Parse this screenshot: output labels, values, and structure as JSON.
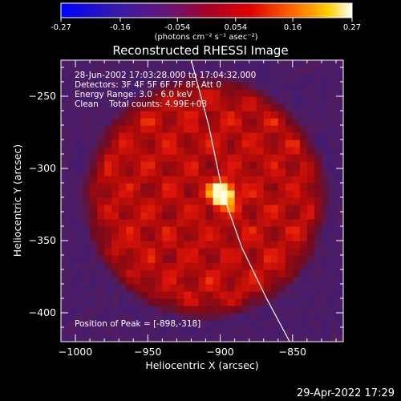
{
  "chart_data": {
    "type": "heatmap",
    "title": "Reconstructed RHESSI Image",
    "xlabel": "Heliocentric X (arcsec)",
    "ylabel": "Heliocentric Y (arcsec)",
    "xlim": [
      -1010,
      -815
    ],
    "ylim": [
      -420,
      -225
    ],
    "x_ticks": [
      -1000,
      -950,
      -900,
      -850
    ],
    "y_ticks": [
      -400,
      -350,
      -300,
      -250
    ],
    "colorbar": {
      "ticks": [
        "-0.27",
        "-0.16",
        "-0.054",
        "0.054",
        "0.16",
        "0.27"
      ],
      "range": [
        -0.27,
        0.27
      ],
      "unit_label": "(photons cm⁻² s⁻¹ asec⁻²)"
    },
    "annotations": [
      "28-Jun-2002 17:03:28.000 to 17:04:32.000",
      "Detectors: 3F 4F 5F 6F 7F 8F, Att 0",
      "Energy Range: 3.0 - 6.0 keV",
      "Clean    Total counts: 4.99E+03"
    ],
    "peak_label": "Position of Peak = [-898,-318]",
    "peak": {
      "x": -898,
      "y": -318,
      "value": 0.27
    },
    "solar_limb": [
      [
        -920,
        -225
      ],
      [
        -908,
        -270
      ],
      [
        -898,
        -318
      ],
      [
        -885,
        -355
      ],
      [
        -868,
        -390
      ],
      [
        -852,
        -420
      ]
    ],
    "source_region": {
      "center_x": -910,
      "center_y": -320,
      "radius": 85
    }
  },
  "footer": {
    "timestamp": "29-Apr-2022 17:29"
  },
  "colors": {
    "background": "#000000",
    "limb": "#ffffff"
  }
}
